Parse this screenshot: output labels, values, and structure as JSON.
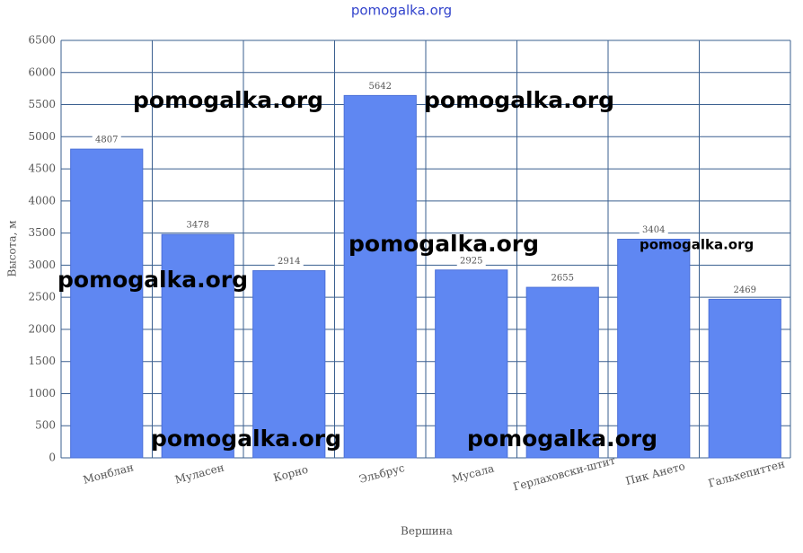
{
  "chart_data": {
    "type": "bar",
    "title": "pomogalka.org",
    "categories": [
      "Монблан",
      "Муласен",
      "Корно",
      "Эльбрус",
      "Мусала",
      "Герлаховски-штит",
      "Пик Ането",
      "Гальхепиттен"
    ],
    "values": [
      4807,
      3478,
      2914,
      5642,
      2925,
      2655,
      3404,
      2469
    ],
    "color": "#5f87f2",
    "x_label": "Вершина",
    "y_label": "Высота, м",
    "ylim": [
      0,
      6500
    ],
    "yticks": [
      0,
      500,
      1000,
      1500,
      2000,
      2500,
      3000,
      3500,
      4000,
      4500,
      5000,
      5500,
      6000,
      6500
    ],
    "grid": true,
    "annotations": [
      "pomogalka.org",
      "pomogalka.org",
      "pomogalka.org",
      "pomogalka.org",
      "pomogalka.org",
      "pomogalka.org",
      "pomogalka.org"
    ]
  }
}
